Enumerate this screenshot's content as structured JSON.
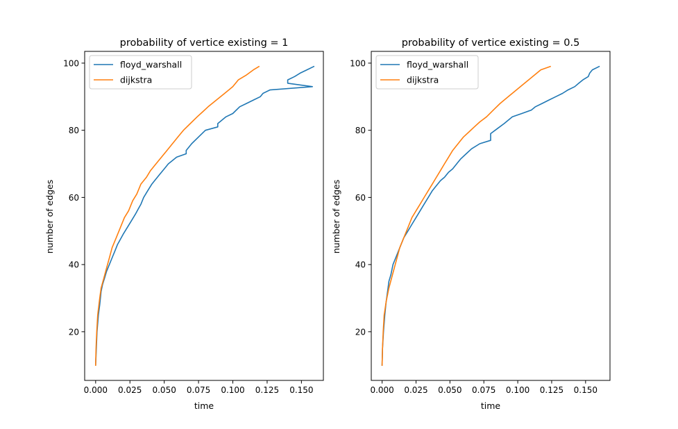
{
  "chart_data": [
    {
      "type": "line",
      "title": "probability of vertice existing = 1",
      "xlabel": "time",
      "ylabel": "number of edges",
      "xlim": [
        -0.008,
        0.166
      ],
      "ylim": [
        5.5,
        103.5
      ],
      "xticks": [
        0.0,
        0.025,
        0.05,
        0.075,
        0.1,
        0.125,
        0.15
      ],
      "xtick_labels": [
        "0.000",
        "0.025",
        "0.050",
        "0.075",
        "0.100",
        "0.125",
        "0.150"
      ],
      "yticks": [
        20,
        40,
        60,
        80,
        100
      ],
      "ytick_labels": [
        "20",
        "40",
        "60",
        "80",
        "100"
      ],
      "legend_position": "top-left",
      "grid": false,
      "series": [
        {
          "name": "floyd_warshall",
          "color": "#1f77b4",
          "points": [
            [
              0.0,
              10
            ],
            [
              0.0005,
              15
            ],
            [
              0.001,
              20
            ],
            [
              0.002,
              25
            ],
            [
              0.003,
              28
            ],
            [
              0.004,
              32
            ],
            [
              0.005,
              34
            ],
            [
              0.0065,
              36
            ],
            [
              0.008,
              38
            ],
            [
              0.01,
              40
            ],
            [
              0.012,
              42
            ],
            [
              0.014,
              44
            ],
            [
              0.016,
              46
            ],
            [
              0.018,
              47.5
            ],
            [
              0.02,
              49
            ],
            [
              0.023,
              51
            ],
            [
              0.026,
              53
            ],
            [
              0.029,
              55
            ],
            [
              0.031,
              56.5
            ],
            [
              0.033,
              58
            ],
            [
              0.035,
              60
            ],
            [
              0.038,
              62
            ],
            [
              0.041,
              64
            ],
            [
              0.044,
              65.5
            ],
            [
              0.047,
              67
            ],
            [
              0.05,
              68.5
            ],
            [
              0.053,
              70
            ],
            [
              0.056,
              71
            ],
            [
              0.059,
              72
            ],
            [
              0.066,
              73
            ],
            [
              0.066,
              74
            ],
            [
              0.07,
              76
            ],
            [
              0.075,
              78
            ],
            [
              0.08,
              80
            ],
            [
              0.089,
              81
            ],
            [
              0.089,
              82
            ],
            [
              0.095,
              84
            ],
            [
              0.1,
              85
            ],
            [
              0.105,
              87
            ],
            [
              0.11,
              88
            ],
            [
              0.115,
              89
            ],
            [
              0.12,
              90
            ],
            [
              0.122,
              91
            ],
            [
              0.127,
              92
            ],
            [
              0.158,
              93
            ],
            [
              0.14,
              94
            ],
            [
              0.14,
              95
            ],
            [
              0.145,
              96
            ],
            [
              0.149,
              97
            ],
            [
              0.154,
              98
            ],
            [
              0.159,
              99
            ]
          ]
        },
        {
          "name": "dijkstra",
          "color": "#ff7f0e",
          "points": [
            [
              0.0,
              10
            ],
            [
              0.0003,
              15
            ],
            [
              0.0008,
              20
            ],
            [
              0.0015,
              25
            ],
            [
              0.003,
              30
            ],
            [
              0.004,
              33
            ],
            [
              0.006,
              36
            ],
            [
              0.008,
              39
            ],
            [
              0.01,
              42
            ],
            [
              0.012,
              45
            ],
            [
              0.015,
              48
            ],
            [
              0.018,
              51
            ],
            [
              0.021,
              54
            ],
            [
              0.024,
              56
            ],
            [
              0.027,
              59
            ],
            [
              0.03,
              61
            ],
            [
              0.033,
              64
            ],
            [
              0.037,
              66
            ],
            [
              0.04,
              68
            ],
            [
              0.044,
              70
            ],
            [
              0.048,
              72
            ],
            [
              0.052,
              74
            ],
            [
              0.056,
              76
            ],
            [
              0.06,
              78
            ],
            [
              0.064,
              80
            ],
            [
              0.069,
              82
            ],
            [
              0.074,
              84
            ],
            [
              0.078,
              85.5
            ],
            [
              0.082,
              87
            ],
            [
              0.088,
              89
            ],
            [
              0.094,
              91
            ],
            [
              0.1,
              93
            ],
            [
              0.104,
              95
            ],
            [
              0.11,
              96.5
            ],
            [
              0.115,
              98
            ],
            [
              0.119,
              99
            ]
          ]
        }
      ]
    },
    {
      "type": "line",
      "title": "probability of vertice existing = 0.5",
      "xlabel": "time",
      "ylabel": "number of edges",
      "xlim": [
        -0.008,
        0.168
      ],
      "ylim": [
        5.5,
        103.5
      ],
      "xticks": [
        0.0,
        0.025,
        0.05,
        0.075,
        0.1,
        0.125,
        0.15
      ],
      "xtick_labels": [
        "0.000",
        "0.025",
        "0.050",
        "0.075",
        "0.100",
        "0.125",
        "0.150"
      ],
      "yticks": [
        20,
        40,
        60,
        80,
        100
      ],
      "ytick_labels": [
        "20",
        "40",
        "60",
        "80",
        "100"
      ],
      "legend_position": "top-left",
      "grid": false,
      "series": [
        {
          "name": "floyd_warshall",
          "color": "#1f77b4",
          "points": [
            [
              0.0,
              10
            ],
            [
              0.0003,
              15
            ],
            [
              0.001,
              20
            ],
            [
              0.002,
              25
            ],
            [
              0.003,
              29
            ],
            [
              0.004,
              32
            ],
            [
              0.005,
              35
            ],
            [
              0.0065,
              37
            ],
            [
              0.008,
              40
            ],
            [
              0.01,
              42
            ],
            [
              0.012,
              44
            ],
            [
              0.014,
              46
            ],
            [
              0.016,
              48
            ],
            [
              0.019,
              50
            ],
            [
              0.022,
              52
            ],
            [
              0.025,
              54
            ],
            [
              0.028,
              56
            ],
            [
              0.031,
              58
            ],
            [
              0.034,
              60
            ],
            [
              0.037,
              62
            ],
            [
              0.04,
              63.5
            ],
            [
              0.043,
              65
            ],
            [
              0.046,
              66
            ],
            [
              0.049,
              67.5
            ],
            [
              0.052,
              68.5
            ],
            [
              0.055,
              70
            ],
            [
              0.058,
              71.5
            ],
            [
              0.062,
              73
            ],
            [
              0.066,
              74.5
            ],
            [
              0.072,
              76
            ],
            [
              0.08,
              77
            ],
            [
              0.08,
              79
            ],
            [
              0.085,
              80.5
            ],
            [
              0.09,
              82
            ],
            [
              0.096,
              84
            ],
            [
              0.103,
              85
            ],
            [
              0.11,
              86
            ],
            [
              0.113,
              87
            ],
            [
              0.118,
              88
            ],
            [
              0.123,
              89
            ],
            [
              0.128,
              90
            ],
            [
              0.133,
              91
            ],
            [
              0.137,
              92
            ],
            [
              0.142,
              93
            ],
            [
              0.145,
              94
            ],
            [
              0.148,
              95
            ],
            [
              0.152,
              96
            ],
            [
              0.153,
              97
            ],
            [
              0.155,
              98
            ],
            [
              0.16,
              99
            ]
          ]
        },
        {
          "name": "dijkstra",
          "color": "#ff7f0e",
          "points": [
            [
              0.0,
              10
            ],
            [
              0.0003,
              15
            ],
            [
              0.0008,
              20
            ],
            [
              0.0015,
              25
            ],
            [
              0.003,
              29
            ],
            [
              0.005,
              33
            ],
            [
              0.007,
              36
            ],
            [
              0.009,
              39
            ],
            [
              0.011,
              42
            ],
            [
              0.013,
              45
            ],
            [
              0.016,
              48
            ],
            [
              0.019,
              51
            ],
            [
              0.022,
              54
            ],
            [
              0.025,
              56
            ],
            [
              0.028,
              58
            ],
            [
              0.031,
              60
            ],
            [
              0.034,
              62
            ],
            [
              0.037,
              64
            ],
            [
              0.04,
              66
            ],
            [
              0.043,
              68
            ],
            [
              0.046,
              70
            ],
            [
              0.049,
              72
            ],
            [
              0.052,
              74
            ],
            [
              0.056,
              76
            ],
            [
              0.06,
              78
            ],
            [
              0.064,
              79.5
            ],
            [
              0.068,
              81
            ],
            [
              0.072,
              82.5
            ],
            [
              0.077,
              84
            ],
            [
              0.082,
              86
            ],
            [
              0.087,
              88
            ],
            [
              0.093,
              90
            ],
            [
              0.099,
              92
            ],
            [
              0.105,
              94
            ],
            [
              0.111,
              96
            ],
            [
              0.117,
              98
            ],
            [
              0.124,
              99
            ]
          ]
        }
      ]
    }
  ]
}
